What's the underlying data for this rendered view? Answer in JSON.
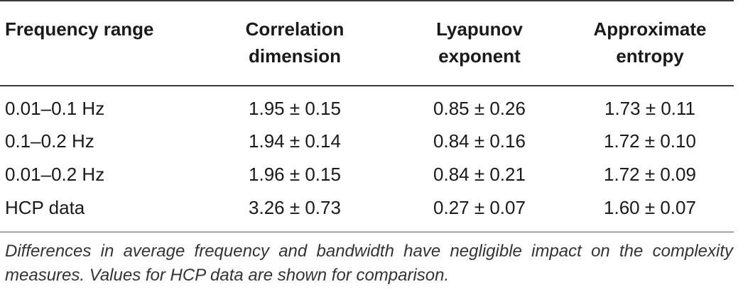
{
  "table": {
    "headers": [
      [
        "Frequency range"
      ],
      [
        "Correlation",
        "dimension"
      ],
      [
        "Lyapunov",
        "exponent"
      ],
      [
        "Approximate",
        "entropy"
      ]
    ],
    "rows": [
      [
        "0.01–0.1 Hz",
        "1.95 ± 0.15",
        "0.85 ± 0.26",
        "1.73 ± 0.11"
      ],
      [
        "0.1–0.2 Hz",
        "1.94 ± 0.14",
        "0.84 ± 0.16",
        "1.72 ± 0.10"
      ],
      [
        "0.01–0.2 Hz",
        "1.96 ± 0.15",
        "0.84 ± 0.21",
        "1.72 ± 0.09"
      ],
      [
        "HCP data",
        "3.26 ± 0.73",
        "0.27 ± 0.07",
        "1.60 ± 0.07"
      ]
    ]
  },
  "footnote": "Differences in average frequency and bandwidth have negligible impact on the complexity measures. Values for HCP data are shown for comparison."
}
